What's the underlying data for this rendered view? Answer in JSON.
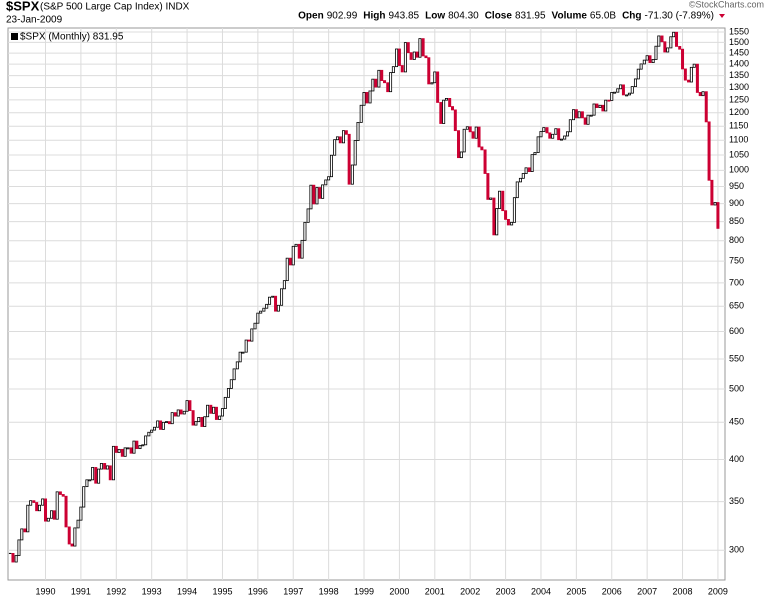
{
  "header": {
    "symbol": "$SPX",
    "name": "(S&P 500 Large Cap Index) INDX",
    "date": "23-Jan-2009",
    "source": "©StockCharts.com",
    "quote": [
      {
        "label": "Open",
        "value": "902.99"
      },
      {
        "label": "High",
        "value": "943.85"
      },
      {
        "label": "Low",
        "value": "804.30"
      },
      {
        "label": "Close",
        "value": "831.95"
      },
      {
        "label": "Volume",
        "value": "65.0B"
      },
      {
        "label": "Chg",
        "value": "-71.30 (-7.89%)"
      }
    ]
  },
  "chart_data": {
    "type": "candle",
    "log_scale": true,
    "grid": true,
    "up_color": "#000000",
    "down_color": "#cc0033",
    "series": [
      {
        "name": "$SPX (Monthly) 831.95",
        "color": "#000000",
        "x": [
          1989,
          1989.08,
          1989.17,
          1989.25,
          1989.33,
          1989.42,
          1989.5,
          1989.58,
          1989.67,
          1989.75,
          1989.83,
          1989.92,
          1990,
          1990.08,
          1990.17,
          1990.25,
          1990.33,
          1990.42,
          1990.5,
          1990.58,
          1990.67,
          1990.75,
          1990.83,
          1990.92,
          1991,
          1991.08,
          1991.17,
          1991.25,
          1991.33,
          1991.42,
          1991.5,
          1991.58,
          1991.67,
          1991.75,
          1991.83,
          1991.92,
          1992,
          1992.08,
          1992.17,
          1992.25,
          1992.33,
          1992.42,
          1992.5,
          1992.58,
          1992.67,
          1992.75,
          1992.83,
          1992.92,
          1993,
          1993.08,
          1993.17,
          1993.25,
          1993.33,
          1993.42,
          1993.5,
          1993.58,
          1993.67,
          1993.75,
          1993.83,
          1993.92,
          1994,
          1994.08,
          1994.17,
          1994.25,
          1994.33,
          1994.42,
          1994.5,
          1994.58,
          1994.67,
          1994.75,
          1994.83,
          1994.92,
          1995,
          1995.08,
          1995.17,
          1995.25,
          1995.33,
          1995.42,
          1995.5,
          1995.58,
          1995.67,
          1995.75,
          1995.83,
          1995.92,
          1996,
          1996.08,
          1996.17,
          1996.25,
          1996.33,
          1996.42,
          1996.5,
          1996.58,
          1996.67,
          1996.75,
          1996.83,
          1996.92,
          1997,
          1997.08,
          1997.17,
          1997.25,
          1997.33,
          1997.42,
          1997.5,
          1997.58,
          1997.67,
          1997.75,
          1997.83,
          1997.92,
          1998,
          1998.08,
          1998.17,
          1998.25,
          1998.33,
          1998.42,
          1998.5,
          1998.58,
          1998.67,
          1998.75,
          1998.83,
          1998.92,
          1999,
          1999.08,
          1999.17,
          1999.25,
          1999.33,
          1999.42,
          1999.5,
          1999.58,
          1999.67,
          1999.75,
          1999.83,
          1999.92,
          2000,
          2000.08,
          2000.17,
          2000.25,
          2000.33,
          2000.42,
          2000.5,
          2000.58,
          2000.67,
          2000.75,
          2000.83,
          2000.92,
          2001,
          2001.08,
          2001.17,
          2001.25,
          2001.33,
          2001.42,
          2001.5,
          2001.58,
          2001.67,
          2001.75,
          2001.83,
          2001.92,
          2002,
          2002.08,
          2002.17,
          2002.25,
          2002.33,
          2002.42,
          2002.5,
          2002.58,
          2002.67,
          2002.75,
          2002.83,
          2002.92,
          2003,
          2003.08,
          2003.17,
          2003.25,
          2003.33,
          2003.42,
          2003.5,
          2003.58,
          2003.67,
          2003.75,
          2003.83,
          2003.92,
          2004,
          2004.08,
          2004.17,
          2004.25,
          2004.33,
          2004.42,
          2004.5,
          2004.58,
          2004.67,
          2004.75,
          2004.83,
          2004.92,
          2005,
          2005.08,
          2005.17,
          2005.25,
          2005.33,
          2005.42,
          2005.5,
          2005.58,
          2005.67,
          2005.75,
          2005.83,
          2005.92,
          2006,
          2006.08,
          2006.17,
          2006.25,
          2006.33,
          2006.42,
          2006.5,
          2006.58,
          2006.67,
          2006.75,
          2006.83,
          2006.92,
          2007,
          2007.08,
          2007.17,
          2007.25,
          2007.33,
          2007.42,
          2007.5,
          2007.58,
          2007.67,
          2007.75,
          2007.83,
          2007.92,
          2008,
          2008.08,
          2008.17,
          2008.25,
          2008.33,
          2008.42,
          2008.5,
          2008.58,
          2008.67,
          2008.75,
          2008.83,
          2008.92,
          2009
        ],
        "values": [
          297,
          289,
          295,
          310,
          321,
          318,
          346,
          351,
          349,
          340,
          346,
          353,
          329,
          332,
          340,
          331,
          361,
          358,
          356,
          323,
          306,
          304,
          322,
          330,
          344,
          367,
          375,
          375,
          390,
          371,
          388,
          395,
          388,
          392,
          375,
          417,
          409,
          413,
          404,
          415,
          415,
          408,
          424,
          414,
          418,
          419,
          431,
          436,
          439,
          443,
          452,
          440,
          450,
          451,
          448,
          464,
          459,
          468,
          462,
          466,
          482,
          467,
          446,
          451,
          457,
          444,
          458,
          475,
          463,
          472,
          454,
          459,
          470,
          487,
          501,
          515,
          533,
          545,
          562,
          562,
          584,
          582,
          605,
          616,
          636,
          640,
          646,
          654,
          669,
          671,
          640,
          652,
          687,
          705,
          757,
          741,
          786,
          791,
          757,
          801,
          848,
          885,
          954,
          899,
          947,
          915,
          955,
          970,
          980,
          1049,
          1102,
          1112,
          1091,
          1134,
          1121,
          957,
          1017,
          1099,
          1164,
          1229,
          1280,
          1238,
          1286,
          1335,
          1302,
          1373,
          1329,
          1320,
          1283,
          1363,
          1389,
          1469,
          1394,
          1366,
          1499,
          1452,
          1421,
          1455,
          1431,
          1518,
          1437,
          1429,
          1315,
          1320,
          1366,
          1240,
          1160,
          1249,
          1256,
          1224,
          1211,
          1134,
          1041,
          1060,
          1139,
          1148,
          1130,
          1107,
          1147,
          1077,
          1067,
          990,
          912,
          916,
          815,
          886,
          936,
          880,
          856,
          841,
          848,
          917,
          964,
          975,
          990,
          1008,
          996,
          1051,
          1058,
          1112,
          1131,
          1145,
          1126,
          1107,
          1121,
          1141,
          1102,
          1104,
          1115,
          1130,
          1174,
          1212,
          1181,
          1204,
          1181,
          1157,
          1191,
          1191,
          1234,
          1220,
          1229,
          1207,
          1249,
          1248,
          1280,
          1281,
          1295,
          1311,
          1270,
          1270,
          1277,
          1304,
          1336,
          1378,
          1401,
          1418,
          1438,
          1407,
          1421,
          1482,
          1531,
          1503,
          1455,
          1474,
          1527,
          1549,
          1481,
          1468,
          1379,
          1331,
          1323,
          1386,
          1400,
          1280,
          1267,
          1283,
          1166,
          969,
          896,
          903,
          831.95
        ]
      }
    ],
    "xlim": [
      1988.94,
      2009.2
    ],
    "xticks": [
      1990,
      1991,
      1992,
      1993,
      1994,
      1995,
      1996,
      1997,
      1998,
      1999,
      2000,
      2001,
      2002,
      2003,
      2004,
      2005,
      2006,
      2007,
      2008,
      2009
    ],
    "ylim": [
      273,
      1570
    ],
    "yticks": [
      300,
      350,
      400,
      450,
      500,
      550,
      600,
      650,
      700,
      750,
      800,
      850,
      900,
      950,
      1000,
      1050,
      1100,
      1150,
      1200,
      1250,
      1300,
      1350,
      1400,
      1450,
      1500,
      1550
    ]
  }
}
